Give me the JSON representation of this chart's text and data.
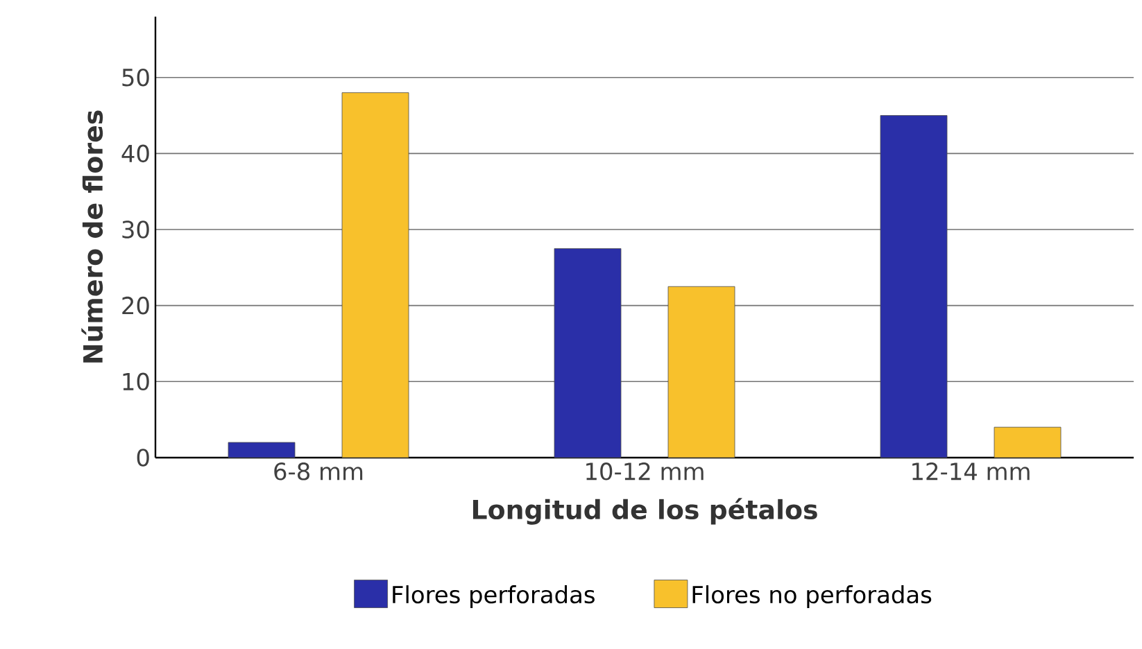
{
  "chart_data": {
    "type": "bar",
    "xlabel": "Longitud de los pétalos",
    "ylabel": "Número de flores",
    "categories": [
      "6-8 mm",
      "10-12 mm",
      "12-14 mm"
    ],
    "series": [
      {
        "name": "Flores perforadas",
        "color": "#2a2fa8",
        "values": [
          2,
          27.5,
          45
        ]
      },
      {
        "name": "Flores no perforadas",
        "color": "#f8c12c",
        "values": [
          48,
          22.5,
          4
        ]
      }
    ],
    "ylim": [
      0,
      58
    ],
    "yticks": [
      0,
      10,
      20,
      30,
      40,
      50
    ],
    "grid": "y",
    "legend": "bottom"
  }
}
